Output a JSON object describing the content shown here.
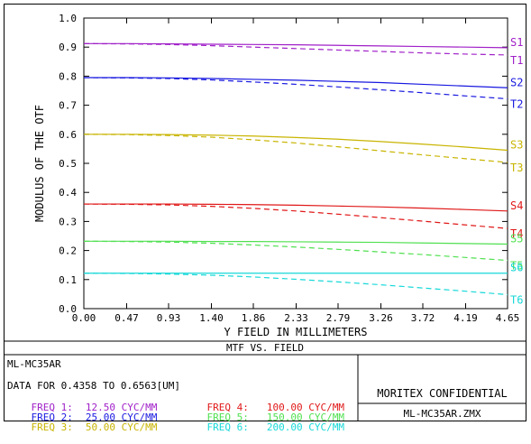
{
  "chart_data": {
    "type": "line",
    "title": "MTF VS. FIELD",
    "xlabel": "Y FIELD IN MILLIMETERS",
    "ylabel": "MODULUS OF THE OTF",
    "xlim": [
      0,
      4.65
    ],
    "ylim": [
      0,
      1.0
    ],
    "x_ticks": [
      "0.00",
      "0.47",
      "0.93",
      "1.40",
      "1.86",
      "2.33",
      "2.79",
      "3.26",
      "3.72",
      "4.19",
      "4.65"
    ],
    "y_ticks": [
      "0.0",
      "0.1",
      "0.2",
      "0.3",
      "0.4",
      "0.5",
      "0.6",
      "0.7",
      "0.8",
      "0.9",
      "1.0"
    ],
    "x": [
      0,
      0.47,
      0.93,
      1.4,
      1.86,
      2.33,
      2.79,
      3.26,
      3.72,
      4.19,
      4.65
    ],
    "series": [
      {
        "name": "S1",
        "style": "solid",
        "color": "#a020c8",
        "values": [
          0.912,
          0.912,
          0.911,
          0.91,
          0.909,
          0.908,
          0.906,
          0.904,
          0.902,
          0.9,
          0.898
        ]
      },
      {
        "name": "T1",
        "style": "dashed",
        "color": "#a020c8",
        "values": [
          0.912,
          0.911,
          0.909,
          0.905,
          0.9,
          0.895,
          0.89,
          0.885,
          0.88,
          0.876,
          0.873
        ]
      },
      {
        "name": "S2",
        "style": "solid",
        "color": "#1818e0",
        "values": [
          0.795,
          0.795,
          0.794,
          0.792,
          0.789,
          0.786,
          0.782,
          0.778,
          0.772,
          0.766,
          0.76
        ]
      },
      {
        "name": "T2",
        "style": "dashed",
        "color": "#1818e0",
        "values": [
          0.795,
          0.794,
          0.792,
          0.787,
          0.78,
          0.772,
          0.763,
          0.753,
          0.743,
          0.732,
          0.722
        ]
      },
      {
        "name": "S3",
        "style": "solid",
        "color": "#c8b400",
        "values": [
          0.6,
          0.6,
          0.599,
          0.597,
          0.594,
          0.589,
          0.583,
          0.575,
          0.566,
          0.556,
          0.545
        ]
      },
      {
        "name": "T3",
        "style": "dashed",
        "color": "#c8b400",
        "values": [
          0.6,
          0.599,
          0.596,
          0.59,
          0.581,
          0.57,
          0.557,
          0.543,
          0.529,
          0.516,
          0.503
        ]
      },
      {
        "name": "S4",
        "style": "solid",
        "color": "#e01818",
        "values": [
          0.36,
          0.36,
          0.36,
          0.359,
          0.358,
          0.356,
          0.353,
          0.35,
          0.346,
          0.341,
          0.336
        ]
      },
      {
        "name": "T4",
        "style": "dashed",
        "color": "#e01818",
        "values": [
          0.36,
          0.359,
          0.357,
          0.352,
          0.345,
          0.336,
          0.325,
          0.313,
          0.301,
          0.288,
          0.276
        ]
      },
      {
        "name": "S5",
        "style": "solid",
        "color": "#50e050",
        "values": [
          0.232,
          0.232,
          0.232,
          0.231,
          0.231,
          0.23,
          0.229,
          0.228,
          0.226,
          0.224,
          0.222
        ]
      },
      {
        "name": "T5",
        "style": "dashed",
        "color": "#50e050",
        "values": [
          0.232,
          0.231,
          0.229,
          0.225,
          0.219,
          0.212,
          0.204,
          0.195,
          0.186,
          0.176,
          0.166
        ]
      },
      {
        "name": "S6",
        "style": "solid",
        "color": "#18d8d8",
        "values": [
          0.122,
          0.122,
          0.122,
          0.122,
          0.122,
          0.122,
          0.122,
          0.122,
          0.122,
          0.122,
          0.122
        ]
      },
      {
        "name": "T6",
        "style": "dashed",
        "color": "#18d8d8",
        "values": [
          0.122,
          0.121,
          0.119,
          0.115,
          0.109,
          0.101,
          0.092,
          0.082,
          0.071,
          0.06,
          0.048
        ]
      }
    ]
  },
  "footer": {
    "title": "MTF VS. FIELD",
    "lens_name": "ML-MC35AR",
    "data_range": "DATA FOR 0.4358 TO 0.6563[UM]",
    "freqs": [
      {
        "label": "FREQ 1:",
        "value": "12.50 CYC/MM",
        "color": "#a020c8"
      },
      {
        "label": "FREQ 2:",
        "value": "25.00 CYC/MM",
        "color": "#1818e0"
      },
      {
        "label": "FREQ 3:",
        "value": "50.00 CYC/MM",
        "color": "#c8b400"
      },
      {
        "label": "FREQ 4:",
        "value": "100.00 CYC/MM",
        "color": "#e01818"
      },
      {
        "label": "FREQ 5:",
        "value": "150.00 CYC/MM",
        "color": "#50e050"
      },
      {
        "label": "FREQ 6:",
        "value": "200.00 CYC/MM",
        "color": "#18d8d8"
      }
    ],
    "confidential": "MORITEX CONFIDENTIAL",
    "filename": "ML-MC35AR.ZMX"
  }
}
